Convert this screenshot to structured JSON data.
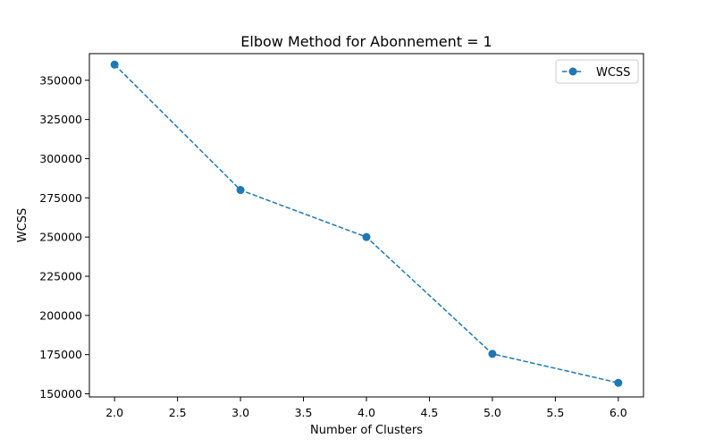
{
  "chart_data": {
    "type": "line",
    "title": "Elbow Method for Abonnement = 1",
    "xlabel": "Number of Clusters",
    "ylabel": "WCSS",
    "xlim": [
      1.8,
      6.2
    ],
    "ylim": [
      148000,
      367000
    ],
    "x_ticks": [
      "2.0",
      "2.5",
      "3.0",
      "3.5",
      "4.0",
      "4.5",
      "5.0",
      "5.5",
      "6.0"
    ],
    "y_ticks": [
      "150000",
      "175000",
      "200000",
      "225000",
      "250000",
      "275000",
      "300000",
      "325000",
      "350000"
    ],
    "grid": false,
    "legend_position": "top-right",
    "series": [
      {
        "name": "WCSS",
        "color": "#1f77b4",
        "line_style": "dashed",
        "marker": "circle",
        "x": [
          2,
          3,
          4,
          5,
          6
        ],
        "values": [
          360000,
          280000,
          250000,
          175500,
          157000
        ]
      }
    ]
  }
}
